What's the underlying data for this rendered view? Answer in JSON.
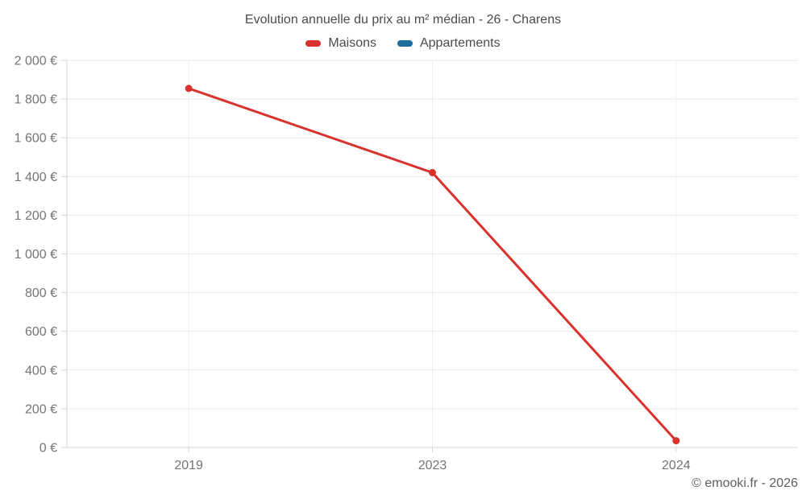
{
  "header": {
    "title": "Evolution annuelle du prix au m² médian - 26 - Charens"
  },
  "legend": {
    "items": [
      {
        "label": "Maisons",
        "color": "#d9322e"
      },
      {
        "label": "Appartements",
        "color": "#1b6d9e"
      }
    ]
  },
  "footer": {
    "credit": "© emooki.fr - 2026"
  },
  "colors": {
    "gridline": "#e9e9e9",
    "axis_line": "#d6d6d6",
    "tick_mark": "#d6d6d6",
    "vertical_gridline": "#efefef",
    "tick_label": "#757575"
  },
  "chart_data": {
    "type": "line",
    "title": "Evolution annuelle du prix au m² médian - 26 - Charens",
    "categories": [
      "2019",
      "2023",
      "2024"
    ],
    "series": [
      {
        "name": "Maisons",
        "color": "#d9322e",
        "values": [
          1855,
          1420,
          35
        ]
      },
      {
        "name": "Appartements",
        "color": "#1b6d9e",
        "values": [
          null,
          null,
          null
        ]
      }
    ],
    "xlabel": "",
    "ylabel": "",
    "ylim": [
      0,
      2000
    ],
    "ytick_step": 200,
    "ytick_labels": [
      "0 €",
      "200 €",
      "400 €",
      "600 €",
      "800 €",
      "1 000 €",
      "1 200 €",
      "1 400 €",
      "1 600 €",
      "1 800 €",
      "2 000 €"
    ],
    "grid": true,
    "legend_position": "top",
    "currency_suffix": "€"
  }
}
